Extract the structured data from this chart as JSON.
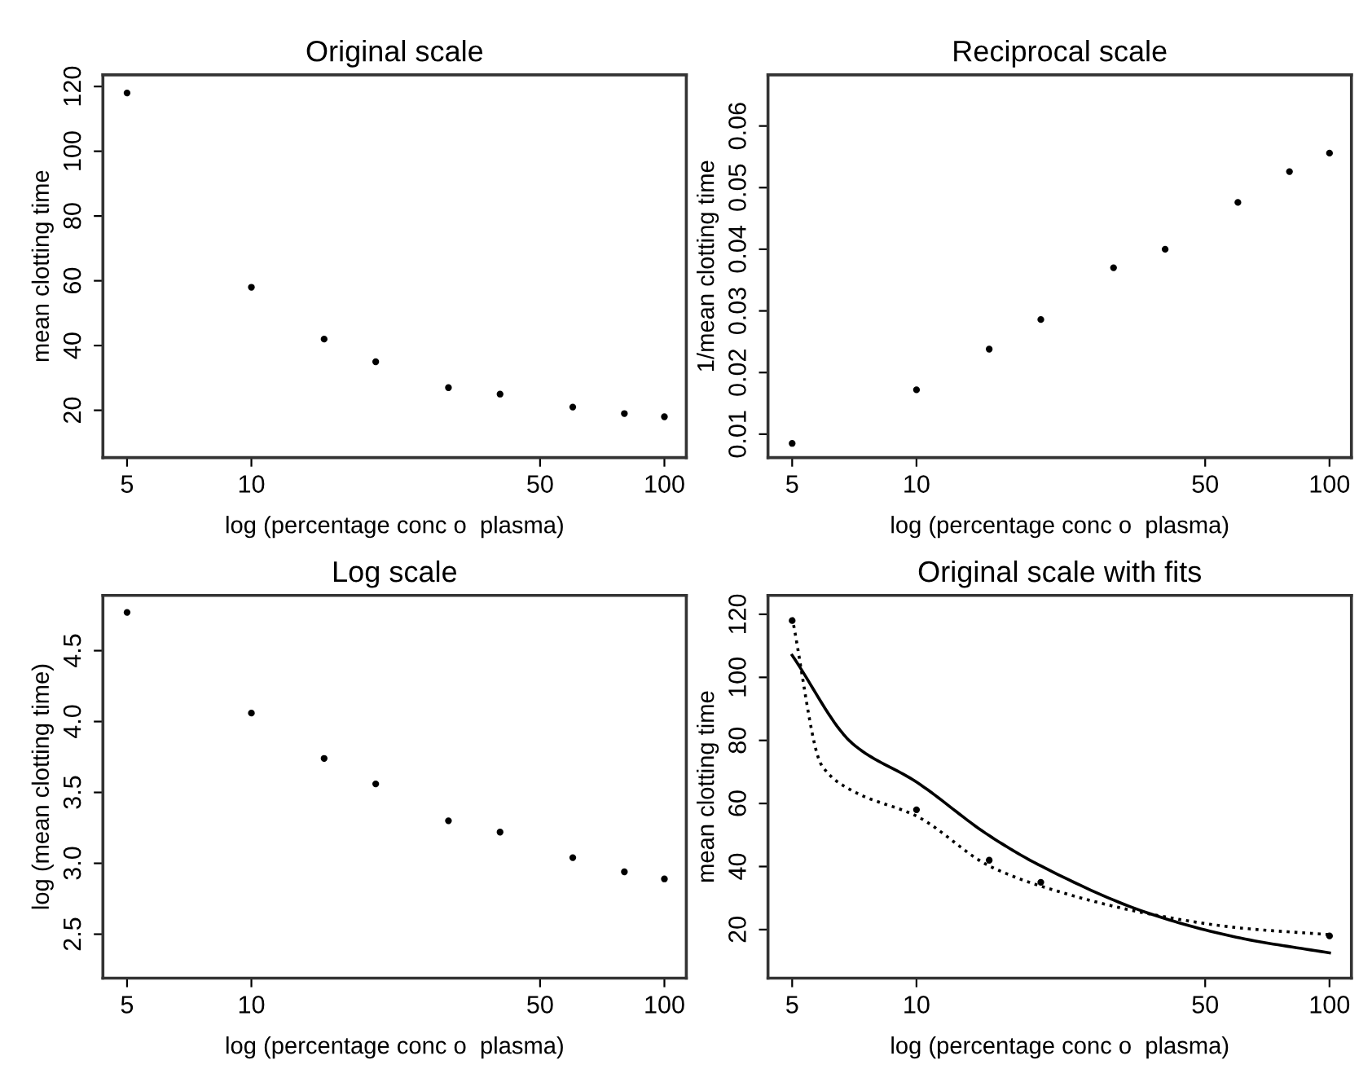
{
  "chart_data": [
    {
      "type": "scatter",
      "title": "Original scale",
      "xlabel": "log (percentage conc o  plasma)",
      "ylabel": "mean clotting time",
      "log": "x",
      "x": [
        5,
        10,
        15,
        20,
        30,
        40,
        60,
        80,
        100
      ],
      "values": [
        118,
        58,
        42,
        35,
        27,
        25,
        21,
        19,
        18
      ],
      "color": "#000000",
      "xlim": [
        4.37,
        113
      ],
      "xticks": [
        5,
        10,
        50,
        100
      ],
      "ylim": [
        5.4,
        123.6
      ],
      "yticks": [
        20,
        40,
        60,
        80,
        100,
        120
      ],
      "grid": false,
      "marker": "circle"
    },
    {
      "type": "scatter",
      "title": "Reciprocal scale",
      "xlabel": "log (percentage conc o  plasma)",
      "ylabel": "1/mean clotting time",
      "log": "x",
      "x": [
        5,
        10,
        15,
        20,
        30,
        40,
        60,
        80,
        100
      ],
      "values": [
        0.0085,
        0.0172,
        0.0238,
        0.0286,
        0.037,
        0.04,
        0.0476,
        0.0526,
        0.0556
      ],
      "color": "#000000",
      "xlim": [
        4.37,
        113
      ],
      "xticks": [
        5,
        10,
        50,
        100
      ],
      "ylim": [
        0.0062,
        0.0683
      ],
      "yticks": [
        0.01,
        0.02,
        0.03,
        0.04,
        0.05,
        0.06
      ],
      "grid": false,
      "marker": "circle"
    },
    {
      "type": "scatter",
      "title": "Log scale",
      "xlabel": "log (percentage conc o  plasma)",
      "ylabel": "log (mean clotting time)",
      "log": "x",
      "x": [
        5,
        10,
        15,
        20,
        30,
        40,
        60,
        80,
        100
      ],
      "values": [
        4.77,
        4.06,
        3.74,
        3.56,
        3.3,
        3.22,
        3.04,
        2.94,
        2.89
      ],
      "color": "#000000",
      "xlim": [
        4.37,
        113
      ],
      "xticks": [
        5,
        10,
        50,
        100
      ],
      "ylim": [
        2.19,
        4.89
      ],
      "yticks": [
        2.5,
        {
          "value": 3,
          "label": "3.0"
        },
        3.5,
        {
          "value": 4,
          "label": "4.0"
        },
        4.5
      ],
      "grid": false,
      "marker": "circle"
    },
    {
      "type": "scatter",
      "title": "Original scale with fits",
      "xlabel": "log (percentage conc o  plasma)",
      "ylabel": "mean clotting time",
      "log": "x",
      "xlim": [
        4.37,
        113
      ],
      "xticks": [
        5,
        10,
        50,
        100
      ],
      "ylim": [
        4.6,
        126
      ],
      "yticks": [
        20,
        40,
        60,
        80,
        100,
        120
      ],
      "grid": false,
      "series": [
        {
          "type": "scatter",
          "marker": "circle",
          "color": "#000000",
          "x": [
            5,
            10,
            15,
            20,
            100
          ],
          "values": [
            118,
            58,
            42,
            35,
            18
          ]
        },
        {
          "type": "line",
          "color": "#000000",
          "line_style": "solid",
          "x": [
            5,
            7,
            10,
            15,
            20,
            37.2,
            60.9,
            100
          ],
          "values": [
            107,
            79,
            66.8,
            49.8,
            40.2,
            24.8,
            17.3,
            12.6
          ]
        },
        {
          "type": "line",
          "color": "#000000",
          "line_style": "dotted",
          "x": [
            5,
            5.9,
            7,
            10,
            15,
            20,
            37.2,
            60.9,
            100
          ],
          "values": [
            119,
            72,
            64,
            56,
            40.2,
            33.8,
            24.8,
            20.5,
            18.4
          ]
        }
      ]
    }
  ]
}
